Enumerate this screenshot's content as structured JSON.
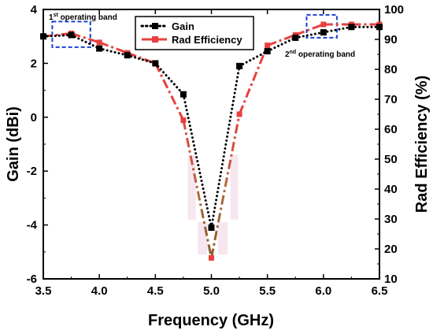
{
  "chart_data": {
    "type": "line",
    "xlabel": "Frequency (GHz)",
    "ylabel": "Gain (dBi)",
    "y2label": "Rad Efficiency (%)",
    "xlim": [
      3.5,
      6.5
    ],
    "ylim": [
      -6,
      4
    ],
    "y2lim": [
      10,
      100
    ],
    "xticks": [
      "3.5",
      "4.0",
      "4.5",
      "5.0",
      "5.5",
      "6.0",
      "6.5"
    ],
    "yticks": [
      "-6",
      "-4",
      "-2",
      "0",
      "2",
      "4"
    ],
    "y2ticks": [
      "10",
      "20",
      "30",
      "40",
      "50",
      "60",
      "70",
      "80",
      "90",
      "100"
    ],
    "grid": false,
    "legend_position": "top-center",
    "series": [
      {
        "name": "Gain",
        "axis": "left",
        "color": "#000000",
        "style": "dotted-square-markers",
        "x": [
          3.5,
          3.75,
          4.0,
          4.25,
          4.5,
          4.75,
          5.0,
          5.25,
          5.5,
          5.75,
          6.0,
          6.25,
          6.5
        ],
        "values": [
          3.0,
          3.05,
          2.55,
          2.3,
          2.0,
          0.85,
          -4.1,
          1.9,
          2.45,
          2.95,
          3.15,
          3.35,
          3.35
        ]
      },
      {
        "name": "Rad Efficiency",
        "axis": "right",
        "color": "#e84040",
        "style": "dashdot-square-markers",
        "x": [
          3.5,
          3.75,
          4.0,
          4.25,
          4.5,
          4.75,
          5.0,
          5.25,
          5.5,
          5.75,
          6.0,
          6.25,
          6.5
        ],
        "values": [
          91,
          92,
          89,
          85.5,
          82,
          63,
          17,
          65,
          88,
          91.5,
          95,
          95,
          95
        ]
      }
    ],
    "annotations": [
      {
        "sup": "st",
        "pre": "1",
        "post": " operating band"
      },
      {
        "sup": "nd",
        "pre": "2",
        "post": " operating band"
      }
    ]
  }
}
